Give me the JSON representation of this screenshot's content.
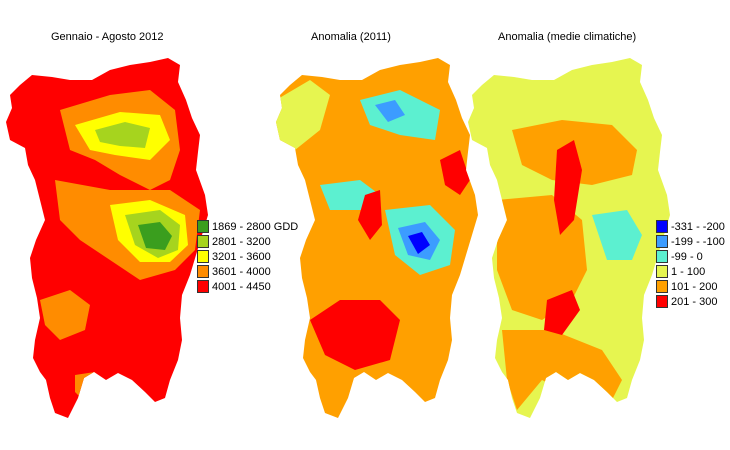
{
  "maps": [
    {
      "title": "Gennaio - Agosto 2012",
      "legend": [
        {
          "label": "1869 - 2800 GDD",
          "color": "#3a9e1e"
        },
        {
          "label": "2801 - 3200",
          "color": "#a6d41e"
        },
        {
          "label": "3201 - 3600",
          "color": "#ffff00"
        },
        {
          "label": "3601 - 4000",
          "color": "#ff8c00"
        },
        {
          "label": "4001 - 4450",
          "color": "#ff0000"
        }
      ]
    },
    {
      "title": "Anomalia (2011)",
      "legend": []
    },
    {
      "title": "Anomalia (medie climatiche)",
      "legend": [
        {
          "label": "-331 - -200",
          "color": "#0000ff"
        },
        {
          "label": "-199 - -100",
          "color": "#3c9cff"
        },
        {
          "label": "-99 - 0",
          "color": "#5cf0d0"
        },
        {
          "label": "1 - 100",
          "color": "#e6f550"
        },
        {
          "label": "101 - 200",
          "color": "#ffa000"
        },
        {
          "label": "201 - 300",
          "color": "#ff0000"
        }
      ]
    }
  ]
}
